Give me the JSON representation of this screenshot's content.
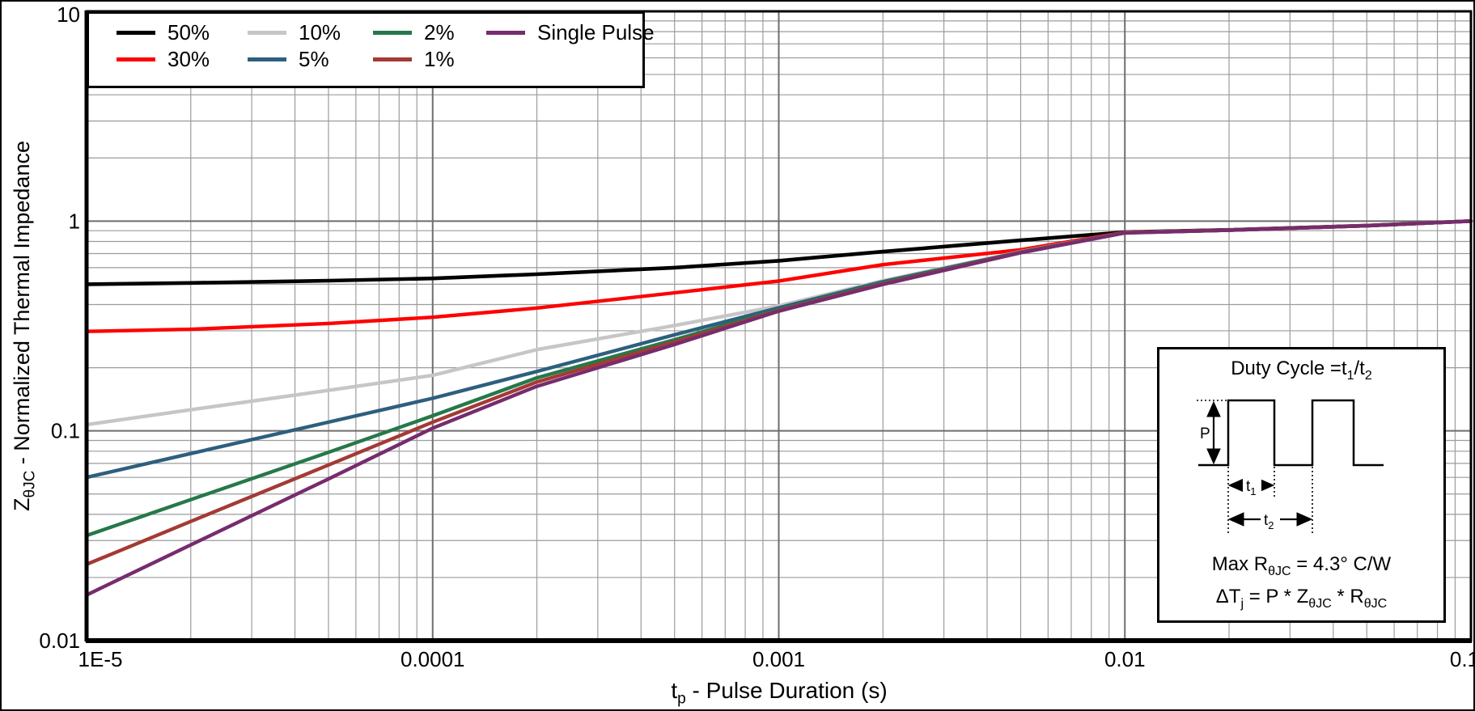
{
  "axes": {
    "y": {
      "title_main": "Z",
      "title_sub": "θJC",
      "title_rest": " - Normalized Thermal Impedance"
    },
    "x": {
      "title_main": "t",
      "title_sub": "p",
      "title_rest": " - Pulse Duration (s)"
    }
  },
  "legend": {
    "items": [
      {
        "label": "50%",
        "color": "#000000"
      },
      {
        "label": "10%",
        "color": "#c6c6c6"
      },
      {
        "label": "2%",
        "color": "#26784a"
      },
      {
        "label": "Single Pulse",
        "color": "#772c6e"
      },
      {
        "label": "30%",
        "color": "#fe0000"
      },
      {
        "label": "5%",
        "color": "#2d5f7e"
      },
      {
        "label": "1%",
        "color": "#a43a35"
      }
    ]
  },
  "inset": {
    "title_pre": "Duty Cycle =t",
    "title_sub1": "1",
    "title_mid": "/t",
    "title_sub2": "2",
    "p_label": "P",
    "t1_main": "t",
    "t1_sub": "1",
    "t2_main": "t",
    "t2_sub": "2",
    "f1_pre": "Max R",
    "f1_sub": "θJC",
    "f1_post": " = 4.3° C/W",
    "f2_a": "ΔT",
    "f2_sub1": "j",
    "f2_b": " = P * Z",
    "f2_sub2": "θJC",
    "f2_c": " * R",
    "f2_sub3": "θJC"
  },
  "chart_data": {
    "type": "line",
    "title": "",
    "xlabel": "tp - Pulse Duration (s)",
    "ylabel": "ZthJC - Normalized Thermal Impedance",
    "x_scale": "log",
    "y_scale": "log",
    "xlim": [
      1e-05,
      0.1
    ],
    "ylim": [
      0.01,
      10
    ],
    "grid": "both-major-and-minor",
    "legend_position": "top-left",
    "x": [
      1e-05,
      2e-05,
      5e-05,
      0.0001,
      0.0002,
      0.0005,
      0.001,
      0.002,
      0.005,
      0.01,
      0.02,
      0.05,
      0.1
    ],
    "x_ticks": [
      {
        "label": "1E-5",
        "value": 1e-05
      },
      {
        "label": "0.0001",
        "value": 0.0001
      },
      {
        "label": "0.001",
        "value": 0.001
      },
      {
        "label": "0.01",
        "value": 0.01
      },
      {
        "label": "0.1",
        "value": 0.1
      }
    ],
    "y_ticks": [
      {
        "label": "10",
        "value": 10
      },
      {
        "label": "1",
        "value": 1
      },
      {
        "label": "0.1",
        "value": 0.1
      },
      {
        "label": "0.01",
        "value": 0.01
      }
    ],
    "series": [
      {
        "name": "50%",
        "color": "#000000",
        "width": 4.6,
        "values": [
          0.5,
          0.507,
          0.52,
          0.533,
          0.558,
          0.6,
          0.647,
          0.715,
          0.81,
          0.886,
          0.908,
          0.952,
          1.0
        ]
      },
      {
        "name": "30%",
        "color": "#fe0000",
        "width": 4.4,
        "values": [
          0.298,
          0.305,
          0.325,
          0.348,
          0.385,
          0.455,
          0.518,
          0.62,
          0.73,
          0.884,
          0.907,
          0.951,
          1.0
        ]
      },
      {
        "name": "10%",
        "color": "#c6c6c6",
        "width": 4.4,
        "values": [
          0.107,
          0.126,
          0.156,
          0.184,
          0.244,
          0.318,
          0.394,
          0.52,
          0.715,
          0.882,
          0.906,
          0.95,
          1.0
        ]
      },
      {
        "name": "5%",
        "color": "#2d5f7e",
        "width": 4.4,
        "values": [
          0.06,
          0.078,
          0.11,
          0.143,
          0.192,
          0.287,
          0.386,
          0.514,
          0.712,
          0.881,
          0.906,
          0.95,
          1.0
        ]
      },
      {
        "name": "2%",
        "color": "#26784a",
        "width": 4.4,
        "values": [
          0.0317,
          0.047,
          0.079,
          0.118,
          0.179,
          0.272,
          0.378,
          0.508,
          0.71,
          0.88,
          0.905,
          0.95,
          1.0
        ]
      },
      {
        "name": "1%",
        "color": "#a43a35",
        "width": 4.4,
        "values": [
          0.0231,
          0.037,
          0.0687,
          0.11,
          0.171,
          0.265,
          0.375,
          0.503,
          0.708,
          0.879,
          0.905,
          0.95,
          1.0
        ]
      },
      {
        "name": "Single Pulse",
        "color": "#772c6e",
        "width": 4.4,
        "values": [
          0.0165,
          0.0286,
          0.059,
          0.103,
          0.163,
          0.258,
          0.372,
          0.499,
          0.706,
          0.878,
          0.905,
          0.95,
          1.0
        ]
      }
    ]
  }
}
